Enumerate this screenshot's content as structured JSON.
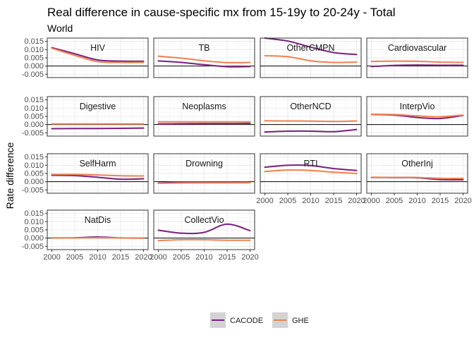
{
  "chart_data": {
    "type": "line",
    "title": "Real difference in cause-specific mx from 15-19y to 20-24y - Total",
    "subtitle": "World",
    "xlabel": "",
    "ylabel": "Rate difference",
    "xlim": [
      1999,
      2021
    ],
    "ylim": [
      -0.007,
      0.017
    ],
    "x_ticks": [
      2000,
      2005,
      2010,
      2015,
      2020
    ],
    "y_ticks": [
      -0.005,
      0,
      0.005,
      0.01,
      0.015
    ],
    "y_tick_labels": [
      "-0.005",
      "0.000",
      "0.005",
      "0.010",
      "0.015"
    ],
    "grid": true,
    "legend_position": "bottom",
    "colors": {
      "CACODE": "#7b2280",
      "GHE": "#f08050",
      "ribbon": "#d3d3d3",
      "strip_bg": "#ffffff",
      "grid": "#ebebeb",
      "zero_line": "#000000"
    },
    "legend": [
      {
        "name": "CACODE",
        "color": "#7b2280"
      },
      {
        "name": "GHE",
        "color": "#f08050"
      }
    ],
    "x": [
      2000,
      2005,
      2010,
      2015,
      2020
    ],
    "panels": [
      {
        "name": "HIV",
        "series": [
          {
            "name": "CACODE",
            "values": [
              0.0112,
              0.0075,
              0.0037,
              0.003,
              0.0029
            ]
          },
          {
            "name": "GHE",
            "values": [
              0.0108,
              0.0065,
              0.0027,
              0.0022,
              0.0022
            ]
          }
        ]
      },
      {
        "name": "TB",
        "series": [
          {
            "name": "CACODE",
            "values": [
              0.0031,
              0.0022,
              0.0008,
              -0.0004,
              -0.0003
            ]
          },
          {
            "name": "GHE",
            "values": [
              0.006,
              0.0048,
              0.0032,
              0.0021,
              0.0022
            ]
          }
        ]
      },
      {
        "name": "OtherCMPN",
        "series": [
          {
            "name": "CACODE",
            "values": [
              0.017,
              0.0152,
              0.0115,
              0.0082,
              0.007
            ]
          },
          {
            "name": "GHE",
            "values": [
              0.0063,
              0.0057,
              0.0032,
              0.0022,
              0.0024
            ]
          }
        ]
      },
      {
        "name": "Cardiovascular",
        "series": [
          {
            "name": "CACODE",
            "values": [
              -0.0003,
              0.0004,
              0.0006,
              0.0005,
              0.0005
            ]
          },
          {
            "name": "GHE",
            "values": [
              0.0028,
              0.003,
              0.0029,
              0.0024,
              0.0022
            ]
          }
        ]
      },
      {
        "name": "Digestive",
        "series": [
          {
            "name": "CACODE",
            "values": [
              -0.0025,
              -0.0024,
              -0.0024,
              -0.0023,
              -0.0021
            ]
          },
          {
            "name": "GHE",
            "values": [
              0.0004,
              0.0004,
              0.0004,
              0.0004,
              0.0004
            ]
          }
        ]
      },
      {
        "name": "Neoplasms",
        "series": [
          {
            "name": "CACODE",
            "values": [
              0.0004,
              0.0005,
              0.0006,
              0.0006,
              0.0007
            ]
          },
          {
            "name": "GHE",
            "values": [
              0.0017,
              0.0017,
              0.0017,
              0.0017,
              0.0017
            ]
          }
        ]
      },
      {
        "name": "OtherNCD",
        "series": [
          {
            "name": "CACODE",
            "values": [
              -0.0045,
              -0.004,
              -0.004,
              -0.0043,
              -0.003
            ]
          },
          {
            "name": "GHE",
            "values": [
              0.0023,
              0.0022,
              0.0021,
              0.0019,
              0.0022
            ]
          }
        ]
      },
      {
        "name": "InterpVio",
        "series": [
          {
            "name": "CACODE",
            "values": [
              0.0062,
              0.0058,
              0.0043,
              0.0037,
              0.0056
            ]
          },
          {
            "name": "GHE",
            "values": [
              0.0063,
              0.0061,
              0.0053,
              0.0048,
              0.0058
            ]
          }
        ]
      },
      {
        "name": "SelfHarm",
        "series": [
          {
            "name": "CACODE",
            "values": [
              0.0039,
              0.0037,
              0.0027,
              0.0015,
              0.0018
            ]
          },
          {
            "name": "GHE",
            "values": [
              0.0044,
              0.0044,
              0.0041,
              0.0036,
              0.0035
            ]
          }
        ]
      },
      {
        "name": "Drowning",
        "series": [
          {
            "name": "CACODE",
            "values": [
              -0.0008,
              -0.0003,
              -0.0003,
              -0.0004,
              -0.0005
            ]
          },
          {
            "name": "GHE",
            "values": [
              -0.001,
              -0.0008,
              -0.0007,
              -0.0007,
              -0.0006
            ]
          }
        ]
      },
      {
        "name": "RTI",
        "series": [
          {
            "name": "CACODE",
            "values": [
              0.0088,
              0.01,
              0.0098,
              0.008,
              0.0068
            ]
          },
          {
            "name": "GHE",
            "values": [
              0.0062,
              0.0071,
              0.0068,
              0.0058,
              0.005
            ]
          }
        ]
      },
      {
        "name": "OtherInj",
        "series": [
          {
            "name": "CACODE",
            "values": [
              0.0026,
              0.0025,
              0.0024,
              0.0013,
              0.0012
            ]
          },
          {
            "name": "GHE",
            "values": [
              0.0027,
              0.0026,
              0.0026,
              0.002,
              0.002
            ]
          }
        ]
      },
      {
        "name": "NatDis",
        "series": [
          {
            "name": "CACODE",
            "values": [
              0.0001,
              0.0002,
              0.0007,
              0.0001,
              0.0
            ]
          },
          {
            "name": "GHE",
            "values": [
              0.0001,
              0.0001,
              0.0003,
              0.0001,
              0.0
            ]
          }
        ]
      },
      {
        "name": "CollectVio",
        "series": [
          {
            "name": "CACODE",
            "values": [
              0.0048,
              0.003,
              0.0035,
              0.0085,
              0.0045
            ]
          },
          {
            "name": "GHE",
            "values": [
              -0.0015,
              -0.001,
              -0.001,
              -0.0013,
              -0.0013
            ]
          }
        ]
      }
    ]
  }
}
